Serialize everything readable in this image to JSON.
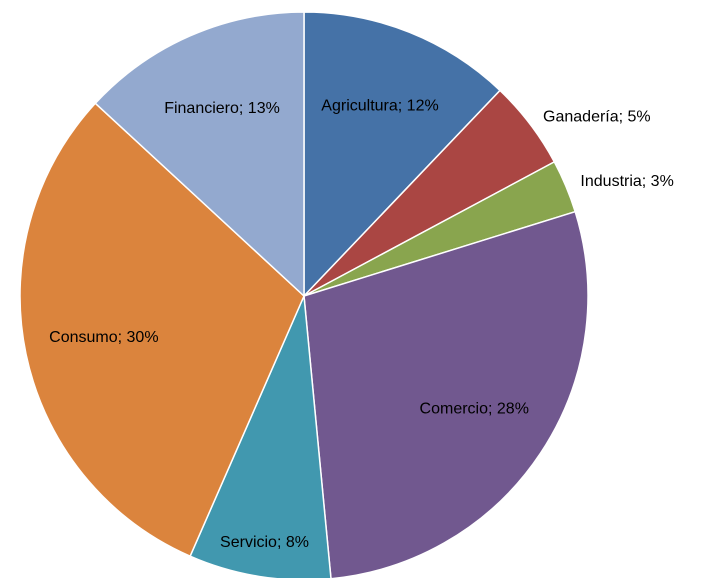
{
  "chart_data": {
    "type": "pie",
    "values": [
      12,
      5,
      3,
      28,
      8,
      30,
      13
    ],
    "value_labels": [
      "Agricultura; 12%",
      "Ganadería; 5%",
      "Industria; 3%",
      "Comercio; 28%",
      "Servicio; 8%",
      "Consumo; 30%",
      "Financiero; 13%"
    ],
    "colors": [
      "#4572a7",
      "#aa4643",
      "#89a54e",
      "#71588f",
      "#4198af",
      "#db843d",
      "#93a9cf"
    ]
  }
}
